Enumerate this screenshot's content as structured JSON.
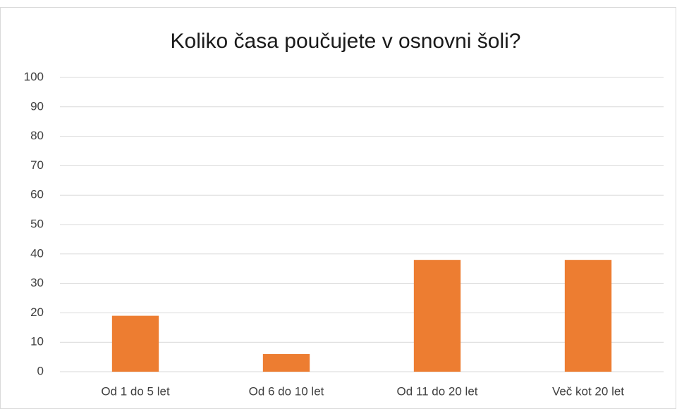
{
  "chart_data": {
    "type": "bar",
    "title": "Koliko časa poučujete v osnovni šoli?",
    "categories": [
      "Od 1 do 5 let",
      "Od 6 do 10 let",
      "Od 11 do 20 let",
      "Več kot 20 let"
    ],
    "values": [
      19,
      6,
      38,
      38
    ],
    "color": "#ed7d31",
    "ylim": [
      0,
      100
    ],
    "yticks": [
      0,
      10,
      20,
      30,
      40,
      50,
      60,
      70,
      80,
      90,
      100
    ],
    "grid": true
  }
}
